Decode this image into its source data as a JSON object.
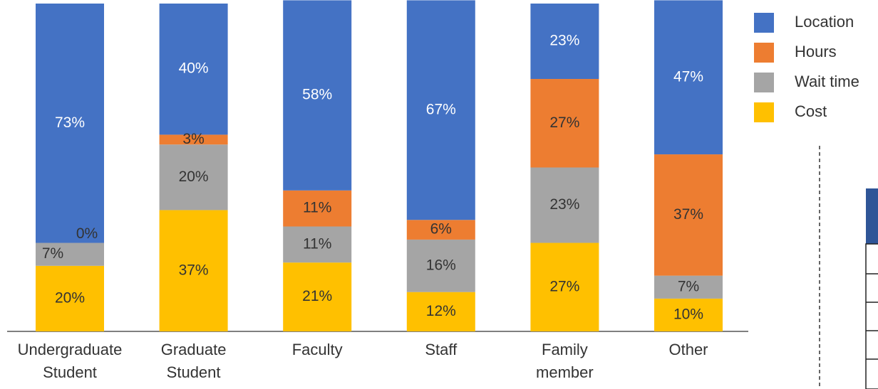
{
  "chart_data": {
    "type": "stacked_bar",
    "categories": [
      "Undergraduate Student",
      "Graduate Student",
      "Faculty",
      "Staff",
      "Family member",
      "Other"
    ],
    "series": [
      {
        "name": "Cost",
        "color": "#ffc000",
        "values": [
          20,
          37,
          21,
          12,
          27,
          10
        ],
        "value_labels": [
          "20%",
          "37%",
          "21%",
          "12%",
          "27%",
          "10%"
        ]
      },
      {
        "name": "Wait time",
        "color": "#a5a5a5",
        "values": [
          7,
          20,
          11,
          16,
          23,
          7
        ],
        "value_labels": [
          "7%",
          "20%",
          "11%",
          "16%",
          "23%",
          "7%"
        ]
      },
      {
        "name": "Hours",
        "color": "#ed7d31",
        "values": [
          0,
          3,
          11,
          6,
          27,
          37
        ],
        "value_labels": [
          "0%",
          "3%",
          "11%",
          "6%",
          "27%",
          "37%"
        ]
      },
      {
        "name": "Location",
        "color": "#4472c4",
        "values": [
          73,
          40,
          58,
          67,
          23,
          47
        ],
        "value_labels": [
          "73%",
          "40%",
          "58%",
          "67%",
          "23%",
          "47%"
        ]
      }
    ],
    "legend": "right"
  }
}
